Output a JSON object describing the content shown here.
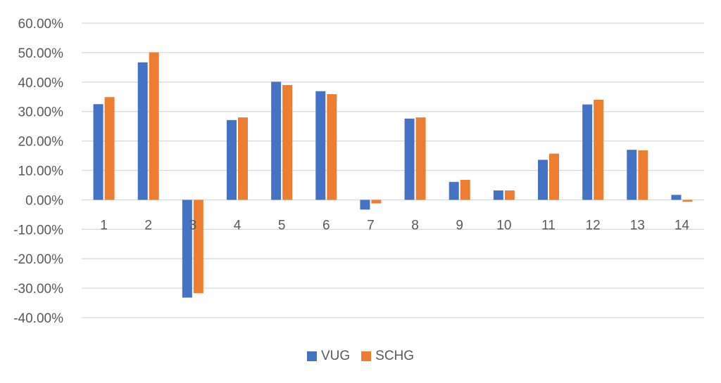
{
  "colors": {
    "vug": "#4472C4",
    "schg": "#ED7D31",
    "grid": "#D9D9D9",
    "text": "#595959"
  },
  "chart_data": {
    "type": "bar",
    "title": "",
    "xlabel": "",
    "ylabel": "",
    "categories": [
      "1",
      "2",
      "3",
      "4",
      "5",
      "6",
      "7",
      "8",
      "9",
      "10",
      "11",
      "12",
      "13",
      "14"
    ],
    "series": [
      {
        "name": "VUG",
        "values": [
          32.5,
          46.7,
          -33.2,
          27.1,
          40.1,
          36.9,
          -3.3,
          27.6,
          6.1,
          3.2,
          13.6,
          32.4,
          17.0,
          1.7
        ]
      },
      {
        "name": "SCHG",
        "values": [
          34.9,
          50.1,
          -31.7,
          28.0,
          39.0,
          35.9,
          -1.2,
          28.0,
          6.8,
          3.2,
          15.7,
          34.0,
          16.8,
          -0.6
        ]
      }
    ],
    "ylim": [
      -40,
      60
    ],
    "yticks": [
      "60.00%",
      "50.00%",
      "40.00%",
      "30.00%",
      "20.00%",
      "10.00%",
      "0.00%",
      "-10.00%",
      "-20.00%",
      "-30.00%",
      "-40.00%"
    ],
    "grid": true,
    "legend": "bottom-center"
  }
}
